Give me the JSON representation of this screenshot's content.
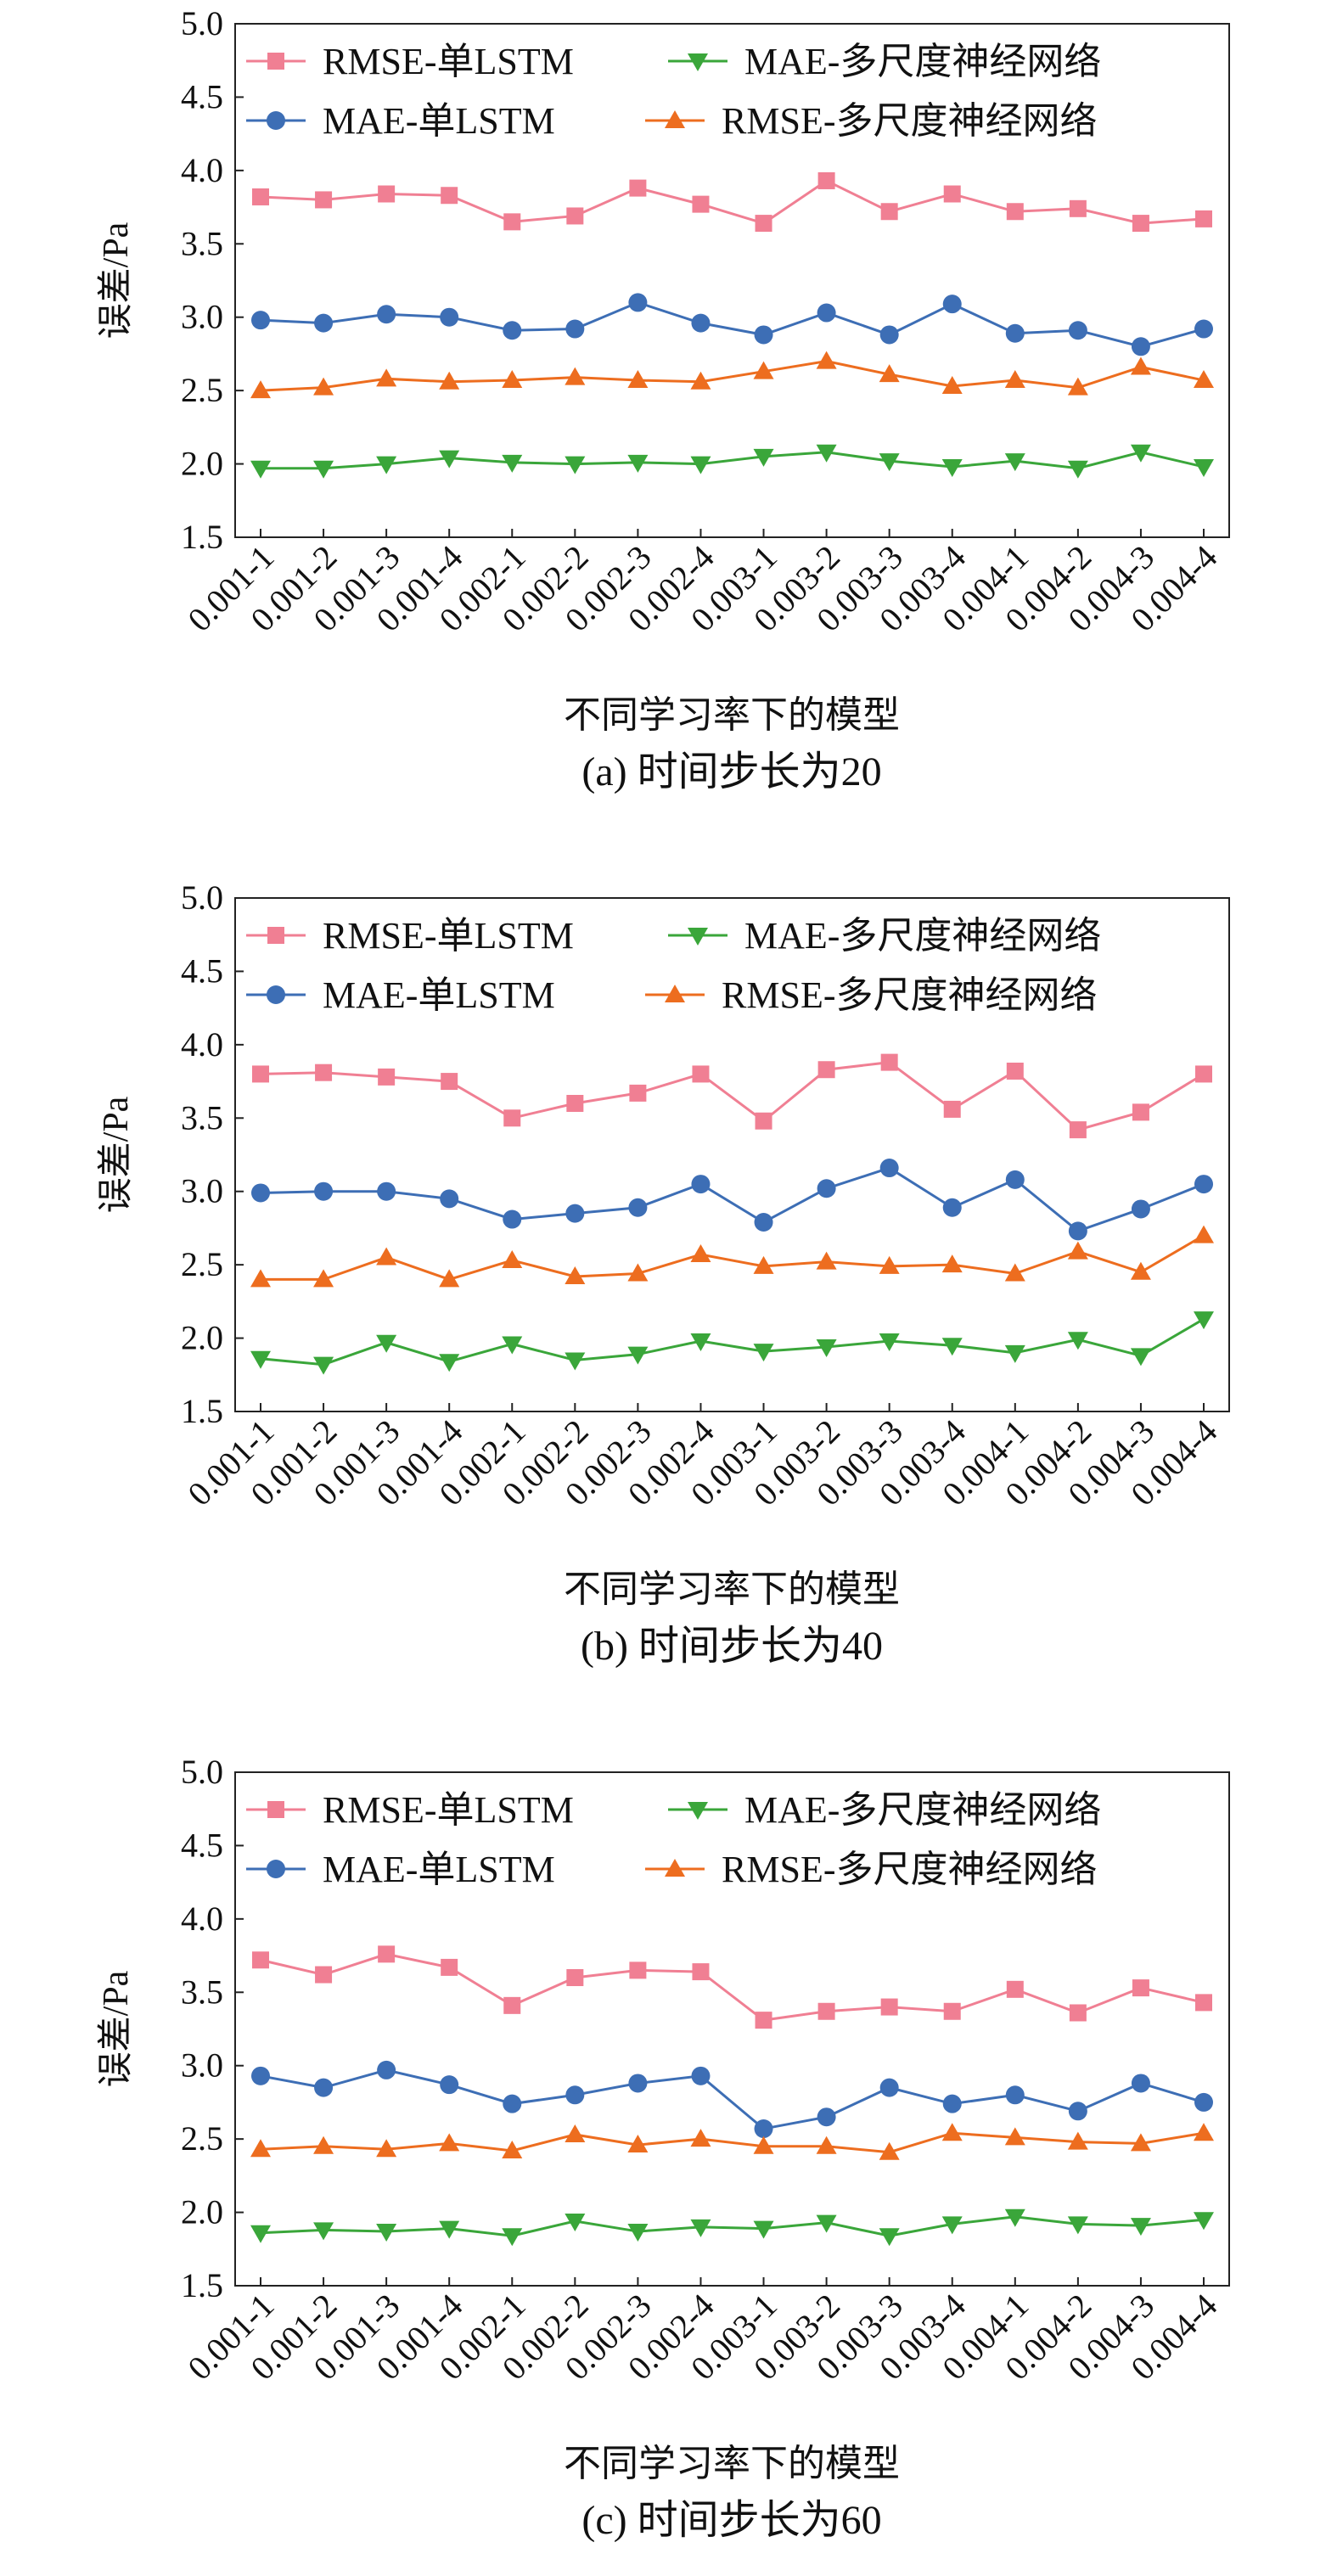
{
  "chart_data": [
    {
      "type": "line",
      "caption": "(a) 时间步长为20",
      "xlabel": "不同学习率下的模型",
      "ylabel": "误差/Pa",
      "ylim": [
        1.5,
        5.0
      ],
      "yticks": [
        "1.5",
        "2.0",
        "2.5",
        "3.0",
        "3.5",
        "4.0",
        "4.5",
        "5.0"
      ],
      "grid": false,
      "legend_position": "top",
      "categories": [
        "0.001-1",
        "0.001-2",
        "0.001-3",
        "0.001-4",
        "0.002-1",
        "0.002-2",
        "0.002-3",
        "0.002-4",
        "0.003-1",
        "0.003-2",
        "0.003-3",
        "0.003-4",
        "0.004-1",
        "0.004-2",
        "0.004-3",
        "0.004-4"
      ],
      "series": [
        {
          "name": "RMSE-单LSTM",
          "color": "#f07f93",
          "marker": "square",
          "values": [
            3.82,
            3.8,
            3.84,
            3.83,
            3.65,
            3.69,
            3.88,
            3.77,
            3.64,
            3.93,
            3.72,
            3.84,
            3.72,
            3.74,
            3.64,
            3.67
          ]
        },
        {
          "name": "MAE-多尺度神经网络",
          "color": "#3aa63a",
          "marker": "triangle-down",
          "values": [
            1.97,
            1.97,
            2.0,
            2.04,
            2.01,
            2.0,
            2.01,
            2.0,
            2.05,
            2.08,
            2.02,
            1.98,
            2.02,
            1.97,
            2.08,
            1.98
          ]
        },
        {
          "name": "MAE-单LSTM",
          "color": "#3d6eb5",
          "marker": "circle",
          "values": [
            2.98,
            2.96,
            3.02,
            3.0,
            2.91,
            2.92,
            3.1,
            2.96,
            2.88,
            3.03,
            2.88,
            3.09,
            2.89,
            2.91,
            2.8,
            2.92
          ]
        },
        {
          "name": "RMSE-多尺度神经网络",
          "color": "#ed6d1f",
          "marker": "triangle-up",
          "values": [
            2.5,
            2.52,
            2.58,
            2.56,
            2.57,
            2.59,
            2.57,
            2.56,
            2.63,
            2.7,
            2.61,
            2.53,
            2.57,
            2.52,
            2.66,
            2.57
          ]
        }
      ]
    },
    {
      "type": "line",
      "caption": "(b) 时间步长为40",
      "xlabel": "不同学习率下的模型",
      "ylabel": "误差/Pa",
      "ylim": [
        1.5,
        5.0
      ],
      "yticks": [
        "1.5",
        "2.0",
        "2.5",
        "3.0",
        "3.5",
        "4.0",
        "4.5",
        "5.0"
      ],
      "grid": false,
      "legend_position": "top",
      "categories": [
        "0.001-1",
        "0.001-2",
        "0.001-3",
        "0.001-4",
        "0.002-1",
        "0.002-2",
        "0.002-3",
        "0.002-4",
        "0.003-1",
        "0.003-2",
        "0.003-3",
        "0.003-4",
        "0.004-1",
        "0.004-2",
        "0.004-3",
        "0.004-4"
      ],
      "series": [
        {
          "name": "RMSE-单LSTM",
          "color": "#f07f93",
          "marker": "square",
          "values": [
            3.8,
            3.81,
            3.78,
            3.75,
            3.5,
            3.6,
            3.67,
            3.8,
            3.48,
            3.83,
            3.88,
            3.56,
            3.82,
            3.42,
            3.54,
            3.8
          ]
        },
        {
          "name": "MAE-多尺度神经网络",
          "color": "#3aa63a",
          "marker": "triangle-down",
          "values": [
            1.86,
            1.82,
            1.97,
            1.84,
            1.96,
            1.85,
            1.89,
            1.98,
            1.91,
            1.94,
            1.98,
            1.95,
            1.9,
            1.99,
            1.88,
            2.13
          ]
        },
        {
          "name": "MAE-单LSTM",
          "color": "#3d6eb5",
          "marker": "circle",
          "values": [
            2.99,
            3.0,
            3.0,
            2.95,
            2.81,
            2.85,
            2.89,
            3.05,
            2.79,
            3.02,
            3.16,
            2.89,
            3.08,
            2.73,
            2.88,
            3.05
          ]
        },
        {
          "name": "RMSE-多尺度神经网络",
          "color": "#ed6d1f",
          "marker": "triangle-up",
          "values": [
            2.4,
            2.4,
            2.55,
            2.4,
            2.53,
            2.42,
            2.44,
            2.57,
            2.49,
            2.52,
            2.49,
            2.5,
            2.44,
            2.59,
            2.45,
            2.7
          ]
        }
      ]
    },
    {
      "type": "line",
      "caption": "(c) 时间步长为60",
      "xlabel": "不同学习率下的模型",
      "ylabel": "误差/Pa",
      "ylim": [
        1.5,
        5.0
      ],
      "yticks": [
        "1.5",
        "2.0",
        "2.5",
        "3.0",
        "3.5",
        "4.0",
        "4.5",
        "5.0"
      ],
      "grid": false,
      "legend_position": "top",
      "categories": [
        "0.001-1",
        "0.001-2",
        "0.001-3",
        "0.001-4",
        "0.002-1",
        "0.002-2",
        "0.002-3",
        "0.002-4",
        "0.003-1",
        "0.003-2",
        "0.003-3",
        "0.003-4",
        "0.004-1",
        "0.004-2",
        "0.004-3",
        "0.004-4"
      ],
      "series": [
        {
          "name": "RMSE-单LSTM",
          "color": "#f07f93",
          "marker": "square",
          "values": [
            3.72,
            3.62,
            3.76,
            3.67,
            3.41,
            3.6,
            3.65,
            3.64,
            3.31,
            3.37,
            3.4,
            3.37,
            3.52,
            3.36,
            3.53,
            3.43
          ]
        },
        {
          "name": "MAE-多尺度神经网络",
          "color": "#3aa63a",
          "marker": "triangle-down",
          "values": [
            1.86,
            1.88,
            1.87,
            1.89,
            1.84,
            1.94,
            1.87,
            1.9,
            1.89,
            1.93,
            1.84,
            1.92,
            1.97,
            1.92,
            1.91,
            1.95
          ]
        },
        {
          "name": "MAE-单LSTM",
          "color": "#3d6eb5",
          "marker": "circle",
          "values": [
            2.93,
            2.85,
            2.97,
            2.87,
            2.74,
            2.8,
            2.88,
            2.93,
            2.57,
            2.65,
            2.85,
            2.74,
            2.8,
            2.69,
            2.88,
            2.75
          ]
        },
        {
          "name": "RMSE-多尺度神经网络",
          "color": "#ed6d1f",
          "marker": "triangle-up",
          "values": [
            2.43,
            2.45,
            2.43,
            2.47,
            2.42,
            2.53,
            2.46,
            2.5,
            2.45,
            2.45,
            2.41,
            2.54,
            2.51,
            2.48,
            2.47,
            2.54
          ]
        }
      ]
    }
  ]
}
